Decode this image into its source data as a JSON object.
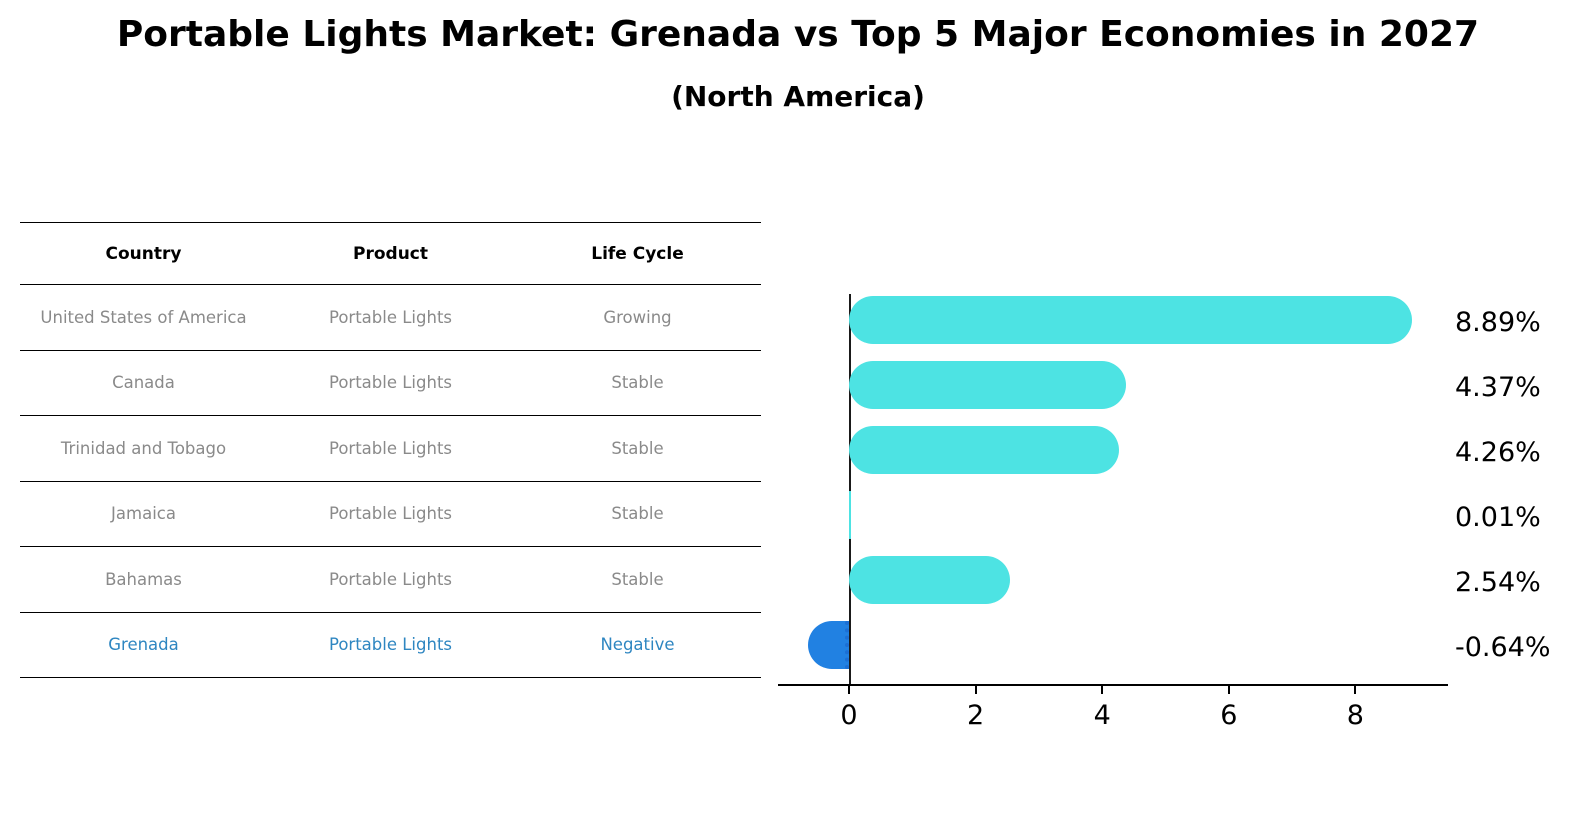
{
  "title": "Portable Lights Market: Grenada vs Top 5 Major Economies in 2027",
  "subtitle": "(North America)",
  "table": {
    "headers": [
      "Country",
      "Product",
      "Life Cycle"
    ],
    "rows": [
      {
        "country": "United States of America",
        "product": "Portable Lights",
        "life_cycle": "Growing",
        "highlight": false
      },
      {
        "country": "Canada",
        "product": "Portable Lights",
        "life_cycle": "Stable",
        "highlight": false
      },
      {
        "country": "Trinidad and Tobago",
        "product": "Portable Lights",
        "life_cycle": "Stable",
        "highlight": false
      },
      {
        "country": "Jamaica",
        "product": "Portable Lights",
        "life_cycle": "Stable",
        "highlight": false
      },
      {
        "country": "Bahamas",
        "product": "Portable Lights",
        "life_cycle": "Stable",
        "highlight": false
      },
      {
        "country": "Grenada",
        "product": "Portable Lights",
        "life_cycle": "Negative",
        "highlight": true
      }
    ]
  },
  "chart_data": {
    "type": "bar",
    "orientation": "horizontal",
    "title": "Portable Lights Market: Grenada vs Top 5 Major Economies in 2027 (North America)",
    "categories": [
      "United States of America",
      "Canada",
      "Trinidad and Tobago",
      "Jamaica",
      "Bahamas",
      "Grenada"
    ],
    "values": [
      8.89,
      4.37,
      4.26,
      0.01,
      2.54,
      -0.64
    ],
    "labels": [
      "8.89%",
      "4.37%",
      "4.26%",
      "0.01%",
      "2.54%",
      "-0.64%"
    ],
    "xlabel": "",
    "ylabel": "",
    "xticks": [
      0,
      2,
      4,
      6,
      8
    ],
    "xlim": [
      -1.1,
      9.4
    ],
    "grid": false,
    "legend": false,
    "bar_color_positive": "#4DE3E3",
    "bar_color_negative": "#2181E2"
  },
  "colors": {
    "highlight_text": "#2E86C1",
    "bar_positive": "#4DE3E3",
    "bar_negative": "#2181E2",
    "axis": "#000000"
  }
}
